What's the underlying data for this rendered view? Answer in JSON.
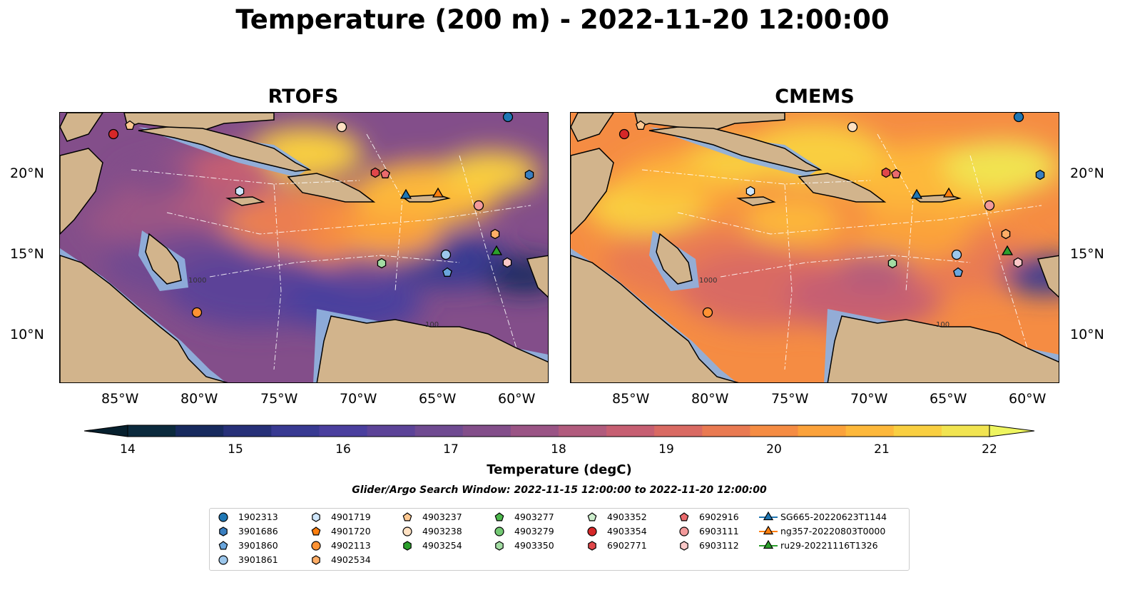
{
  "title": "Temperature (200 m) - 2022-11-20 12:00:00",
  "panels": [
    {
      "title": "RTOFS",
      "style": "cool"
    },
    {
      "title": "CMEMS",
      "style": "warm"
    }
  ],
  "lat_labels": [
    "20°N",
    "15°N",
    "10°N"
  ],
  "lon_labels": [
    "85°W",
    "80°W",
    "75°W",
    "70°W",
    "65°W",
    "60°W"
  ],
  "colorbar": {
    "ticks": [
      "14",
      "15",
      "16",
      "17",
      "18",
      "19",
      "20",
      "21",
      "22"
    ],
    "label": "Temperature (degC)",
    "colors": [
      "#0b2a3d",
      "#172a5e",
      "#263078",
      "#383a92",
      "#4a3f9e",
      "#5c4398",
      "#6f4a91",
      "#834e8a",
      "#9a5485",
      "#b15b7d",
      "#c65f72",
      "#d96a63",
      "#e97a52",
      "#f58c43",
      "#fba23b",
      "#fdb83b",
      "#f9cf41",
      "#f1e451"
    ],
    "under": "#06202e",
    "over": "#eef560"
  },
  "contour_labels": [
    "1000",
    "100"
  ],
  "search_window": "Glider/Argo Search Window: 2022-11-15 12:00:00 to 2022-11-20 12:00:00",
  "legend": [
    {
      "label": "1902313",
      "marker": "circle",
      "color": "#1f77b4"
    },
    {
      "label": "3901686",
      "marker": "hexagon",
      "color": "#3a7fc0"
    },
    {
      "label": "3901860",
      "marker": "pentagon",
      "color": "#6aa6dd"
    },
    {
      "label": "3901861",
      "marker": "circle",
      "color": "#9cc7ec"
    },
    {
      "label": "4901719",
      "marker": "hexagon",
      "color": "#cfe6fb"
    },
    {
      "label": "4901720",
      "marker": "pentagon",
      "color": "#ff7f0e"
    },
    {
      "label": "4902113",
      "marker": "circle",
      "color": "#ff9233"
    },
    {
      "label": "4902534",
      "marker": "hexagon",
      "color": "#ffad66"
    },
    {
      "label": "4903237",
      "marker": "pentagon",
      "color": "#ffc992"
    },
    {
      "label": "4903238",
      "marker": "circle",
      "color": "#ffe1c2"
    },
    {
      "label": "4903254",
      "marker": "hexagon",
      "color": "#2ca02c"
    },
    {
      "label": "4903277",
      "marker": "pentagon",
      "color": "#4cb84c"
    },
    {
      "label": "4903279",
      "marker": "circle",
      "color": "#74c974"
    },
    {
      "label": "4903350",
      "marker": "hexagon",
      "color": "#a3dda3"
    },
    {
      "label": "4903352",
      "marker": "pentagon",
      "color": "#cdeecd"
    },
    {
      "label": "4903354",
      "marker": "circle",
      "color": "#d62728"
    },
    {
      "label": "6902771",
      "marker": "hexagon",
      "color": "#e0474a"
    },
    {
      "label": "6902916",
      "marker": "pentagon",
      "color": "#ea6a6c"
    },
    {
      "label": "6903111",
      "marker": "circle",
      "color": "#f39a9b"
    },
    {
      "label": "6903112",
      "marker": "hexagon",
      "color": "#fac8c8"
    },
    {
      "label": "SG665-20220623T1144",
      "marker": "triangle-line",
      "color": "#1f77b4"
    },
    {
      "label": "ng357-20220803T0000",
      "marker": "triangle-line",
      "color": "#ff7f0e"
    },
    {
      "label": "ru29-20221116T1326",
      "marker": "triangle-line",
      "color": "#2ca02c"
    }
  ]
}
